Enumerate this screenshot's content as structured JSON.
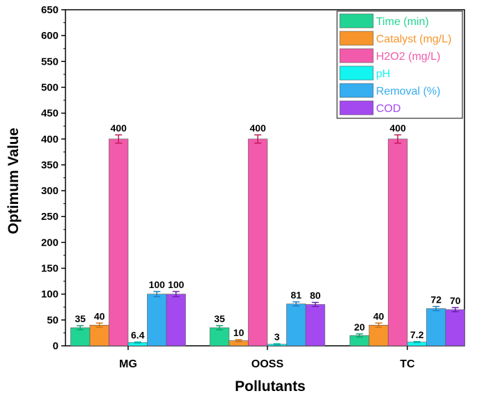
{
  "chart_data": {
    "type": "bar",
    "title": "",
    "xlabel": "Pollutants",
    "ylabel": "Optimum Value",
    "ylim": [
      0,
      650
    ],
    "yticks": [
      0,
      50,
      100,
      150,
      200,
      250,
      300,
      350,
      400,
      450,
      500,
      550,
      600,
      650
    ],
    "categories": [
      "MG",
      "OOSS",
      "TC"
    ],
    "legend_position": "top-right",
    "grid": false,
    "series": [
      {
        "name": "Time (min)",
        "color": "#22d493",
        "values": [
          35,
          35,
          20
        ],
        "labels": [
          "35",
          "35",
          "20"
        ],
        "error": [
          4,
          4,
          3
        ]
      },
      {
        "name": "Catalyst (mg/L)",
        "color": "#f7952c",
        "values": [
          40,
          10,
          40
        ],
        "labels": [
          "40",
          "10",
          "40"
        ],
        "error": [
          4,
          2,
          4
        ]
      },
      {
        "name": "H2O2 (mg/L)",
        "color": "#f25aab",
        "values": [
          400,
          400,
          400
        ],
        "labels": [
          "400",
          "400",
          "400"
        ],
        "error": [
          8,
          8,
          8
        ]
      },
      {
        "name": "pH",
        "color": "#12f5f0",
        "values": [
          6.4,
          3,
          7.2
        ],
        "labels": [
          "6.4",
          "3",
          "7.2"
        ],
        "error": [
          1,
          1,
          1
        ]
      },
      {
        "name": "Removal (%)",
        "color": "#35aef0",
        "values": [
          100,
          81,
          72
        ],
        "labels": [
          "100",
          "81",
          "72"
        ],
        "error": [
          5,
          4,
          4
        ]
      },
      {
        "name": "COD",
        "color": "#a449f0",
        "values": [
          100,
          80,
          70
        ],
        "labels": [
          "100",
          "80",
          "70"
        ],
        "error": [
          5,
          4,
          4
        ]
      }
    ]
  }
}
